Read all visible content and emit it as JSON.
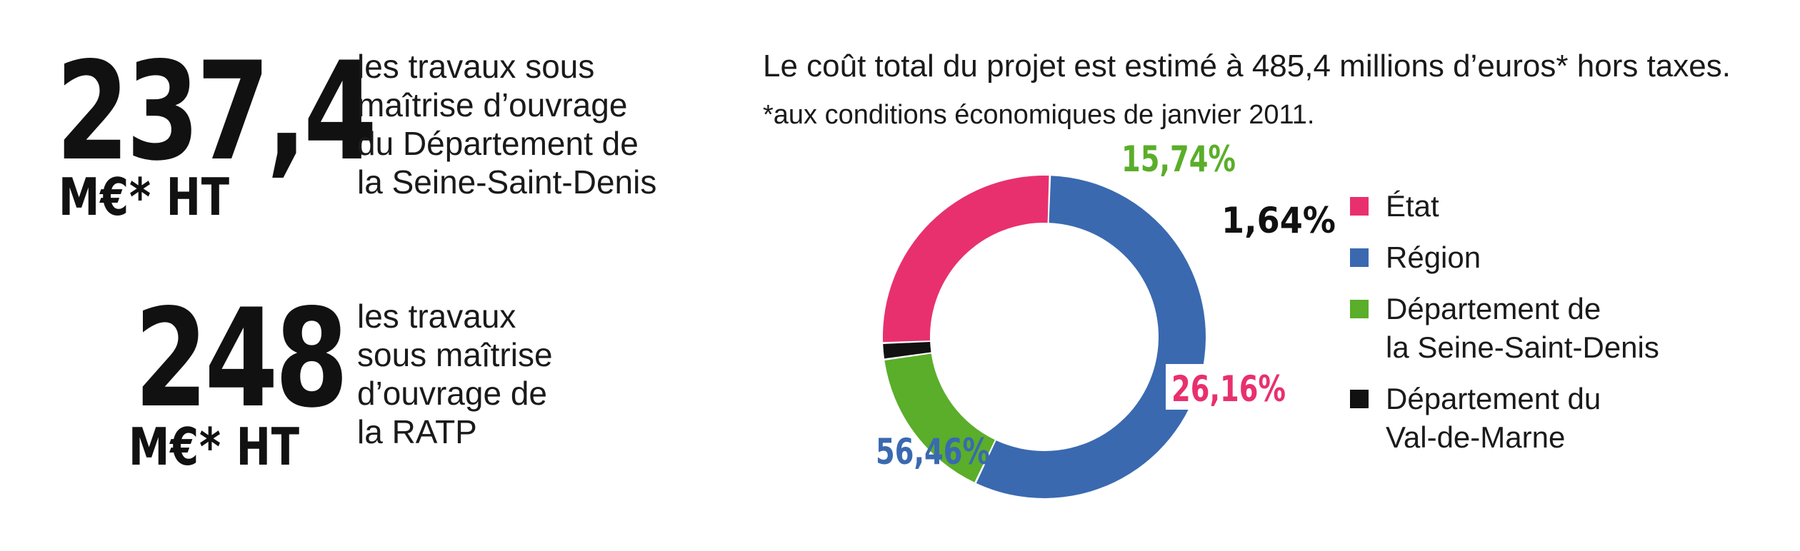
{
  "left_panel": {
    "blocks": [
      {
        "value": "237,4",
        "unit": "M€* HT",
        "description_lines": [
          "les travaux sous",
          "maîtrise d’ouvrage",
          "du Département de",
          "la Seine-Saint-Denis"
        ]
      },
      {
        "value": "248",
        "unit": "M€* HT",
        "description_lines": [
          "les travaux",
          "sous maîtrise",
          "d’ouvrage de",
          "la RATP"
        ]
      }
    ]
  },
  "chart_data": {
    "type": "pie",
    "title": "Le coût total du projet est estimé à 485,4 millions d’euros* hors taxes.",
    "subtitle": "*aux conditions économiques de janvier 2011.",
    "donut": true,
    "legend_position": "right",
    "slices": [
      {
        "name": "État",
        "legend_lines": [
          "État"
        ],
        "value": 26.16,
        "label": "26,16%",
        "color": "#e8306f"
      },
      {
        "name": "Région",
        "legend_lines": [
          "Région"
        ],
        "value": 56.46,
        "label": "56,46%",
        "color": "#3a69b0"
      },
      {
        "name": "Département de la Seine-Saint-Denis",
        "legend_lines": [
          "Département de",
          "la Seine-Saint-Denis"
        ],
        "value": 15.74,
        "label": "15,74%",
        "color": "#5aae2a"
      },
      {
        "name": "Département du Val-de-Marne",
        "legend_lines": [
          "Département du",
          "Val-de-Marne"
        ],
        "value": 1.64,
        "label": "1,64%",
        "color": "#111111"
      }
    ],
    "draw_order": [
      1,
      2,
      3,
      0
    ]
  }
}
